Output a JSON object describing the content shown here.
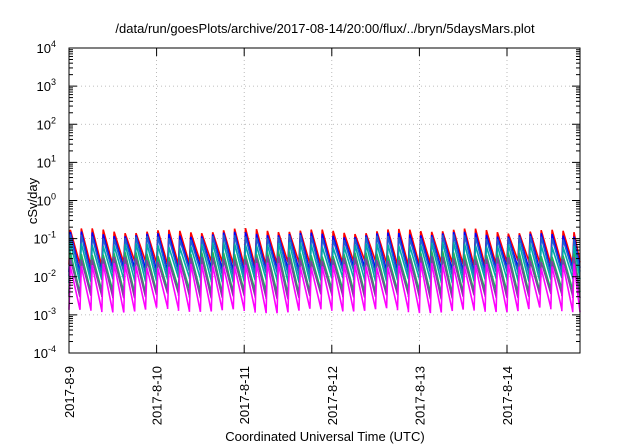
{
  "chart_data": {
    "type": "line",
    "title": "/data/run/goesPlots/archive/2017-08-14/20:00/flux/../bryn/5daysMars.plot",
    "xlabel": "Coordinated Universal Time (UTC)",
    "ylabel": "cSv/day",
    "x_range": [
      "2017-8-9",
      "2017-8-14 20:00"
    ],
    "ylim": [
      0.0001,
      10000
    ],
    "y_scale": "log",
    "grid": true,
    "legend": "none",
    "x_ticks": [
      "2017-8-9",
      "2017-8-10",
      "2017-8-11",
      "2017-8-12",
      "2017-8-13",
      "2017-8-14"
    ],
    "y_ticks": [
      {
        "base": "10",
        "exp": "-4",
        "value": 0.0001
      },
      {
        "base": "10",
        "exp": "-3",
        "value": 0.001
      },
      {
        "base": "10",
        "exp": "-2",
        "value": 0.01
      },
      {
        "base": "10",
        "exp": "-1",
        "value": 0.1
      },
      {
        "base": "10",
        "exp": "0",
        "value": 1
      },
      {
        "base": "10",
        "exp": "1",
        "value": 10
      },
      {
        "base": "10",
        "exp": "2",
        "value": 100
      },
      {
        "base": "10",
        "exp": "3",
        "value": 1000
      },
      {
        "base": "10",
        "exp": "4",
        "value": 10000
      }
    ],
    "sawtooth_period_hours": 3,
    "series": [
      {
        "color": "#ff0000",
        "peak": 0.16,
        "trough": 0.022
      },
      {
        "color": "#0000ff",
        "peak": 0.13,
        "trough": 0.015
      },
      {
        "color": "#2060d0",
        "peak": 0.11,
        "trough": 0.012
      },
      {
        "color": "#00aaaa",
        "peak": 0.07,
        "trough": 0.008
      },
      {
        "color": "#20b060",
        "peak": 0.04,
        "trough": 0.004
      },
      {
        "color": "#8040a0",
        "peak": 0.03,
        "trough": 0.003
      },
      {
        "color": "#ff00ff",
        "peak": 0.02,
        "trough": 0.0013
      }
    ]
  }
}
